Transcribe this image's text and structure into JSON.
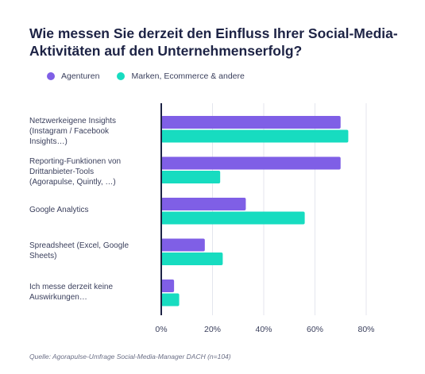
{
  "chart_data": {
    "type": "bar",
    "orientation": "horizontal",
    "title": "Wie messen Sie derzeit den Einfluss Ihrer Social-Media-Aktivitäten auf den Unternehmenserfolg?",
    "categories": [
      "Netzwerkeigene Insights (Instagram / Facebook Insights…)",
      "Reporting-Funktionen von Drittanbieter-Tools (Agorapulse, Quintly, …)",
      "Google Analytics",
      "Spreadsheet (Excel, Google Sheets)",
      "Ich messe derzeit keine Auswirkungen…"
    ],
    "category_lines": [
      [
        "Netzwerkeigene Insights",
        "(Instagram / Facebook",
        "Insights…)"
      ],
      [
        "Reporting-Funktionen von",
        "Drittanbieter-Tools",
        "(Agorapulse, Quintly, …)"
      ],
      [
        "Google Analytics"
      ],
      [
        "Spreadsheet (Excel, Google",
        "Sheets)"
      ],
      [
        "Ich messe derzeit keine",
        "Auswirkungen…"
      ]
    ],
    "series": [
      {
        "name": "Agenturen",
        "color": "#7f5fe6",
        "values": [
          70,
          70,
          33,
          17,
          5
        ]
      },
      {
        "name": "Marken, Ecommerce & andere",
        "color": "#17dcc0",
        "values": [
          73,
          23,
          56,
          24,
          7
        ]
      }
    ],
    "xlim": [
      0,
      80
    ],
    "xticks": [
      0,
      20,
      40,
      60,
      80
    ],
    "xtick_labels": [
      "0%",
      "20%",
      "40%",
      "60%",
      "80%"
    ],
    "grid": true,
    "legend_position": "top-left"
  },
  "source": "Quelle: Agorapulse-Umfrage Social-Media-Manager DACH (n=104)"
}
